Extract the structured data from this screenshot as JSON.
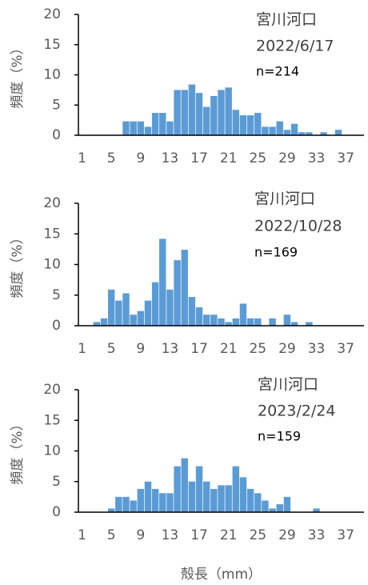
{
  "chart_data": [
    {
      "type": "bar",
      "annotations": [
        "宮川河口",
        "2022/6/17",
        "n=214"
      ],
      "ylabel": "頻度（%）",
      "categories": [
        "1",
        null,
        null,
        null,
        "5",
        null,
        null,
        null,
        "9",
        null,
        null,
        null,
        "13",
        null,
        null,
        null,
        "17",
        null,
        null,
        null,
        "21",
        null,
        null,
        null,
        "25",
        null,
        null,
        null,
        "29",
        null,
        null,
        null,
        "33",
        null,
        null,
        null,
        "37",
        null,
        null
      ],
      "values": [
        0,
        0,
        0,
        0,
        0,
        0,
        2.3,
        2.3,
        2.3,
        1.4,
        3.7,
        3.7,
        2.3,
        7.5,
        7.5,
        8.4,
        7.0,
        4.7,
        6.5,
        7.5,
        7.9,
        4.2,
        3.3,
        3.3,
        3.7,
        1.4,
        1.4,
        2.3,
        0.9,
        1.9,
        0.5,
        0.5,
        0,
        0.5,
        0,
        0.9,
        0,
        0,
        0
      ],
      "color": "#5b9bd5",
      "ylim": [
        0,
        20
      ],
      "yticks": [
        0,
        5,
        10,
        15,
        20
      ]
    },
    {
      "type": "bar",
      "annotations": [
        "宮川河口",
        "2022/10/28",
        "n=169"
      ],
      "ylabel": "頻度（%）",
      "categories": [
        "1",
        null,
        null,
        null,
        "5",
        null,
        null,
        null,
        "9",
        null,
        null,
        null,
        "13",
        null,
        null,
        null,
        "17",
        null,
        null,
        null,
        "21",
        null,
        null,
        null,
        "25",
        null,
        null,
        null,
        "29",
        null,
        null,
        null,
        "33",
        null,
        null,
        null,
        "37",
        null,
        null
      ],
      "values": [
        0,
        0,
        0.6,
        1.2,
        5.9,
        4.1,
        5.3,
        1.8,
        2.4,
        4.1,
        7.1,
        14.2,
        5.9,
        10.7,
        12.4,
        4.7,
        3.0,
        1.8,
        1.8,
        1.2,
        0.6,
        1.2,
        3.6,
        1.2,
        1.2,
        0,
        1.2,
        0,
        1.8,
        0.6,
        0,
        0.6,
        0,
        0,
        0,
        0,
        0,
        0,
        0
      ],
      "color": "#5b9bd5",
      "ylim": [
        0,
        20
      ],
      "yticks": [
        0,
        5,
        10,
        15,
        20
      ]
    },
    {
      "type": "bar",
      "annotations": [
        "宮川河口",
        "2023/2/24",
        "n=159"
      ],
      "ylabel": "頻度（%）",
      "xlabel": "殻長（mm）",
      "categories": [
        "1",
        null,
        null,
        null,
        "5",
        null,
        null,
        null,
        "9",
        null,
        null,
        null,
        "13",
        null,
        null,
        null,
        "17",
        null,
        null,
        null,
        "21",
        null,
        null,
        null,
        "25",
        null,
        null,
        null,
        "29",
        null,
        null,
        null,
        "33",
        null,
        null,
        null,
        "37",
        null,
        null
      ],
      "values": [
        0,
        0,
        0,
        0,
        0.6,
        2.5,
        2.5,
        1.9,
        3.8,
        5.0,
        3.8,
        3.1,
        3.1,
        7.5,
        8.8,
        5.0,
        7.5,
        5.0,
        3.8,
        4.4,
        4.4,
        7.5,
        5.7,
        3.8,
        3.1,
        1.9,
        0.6,
        1.3,
        2.5,
        0,
        0,
        0,
        0.6,
        0,
        0,
        0,
        0,
        0,
        0
      ],
      "color": "#5b9bd5",
      "ylim": [
        0,
        20
      ],
      "yticks": [
        0,
        5,
        10,
        15,
        20
      ]
    }
  ]
}
